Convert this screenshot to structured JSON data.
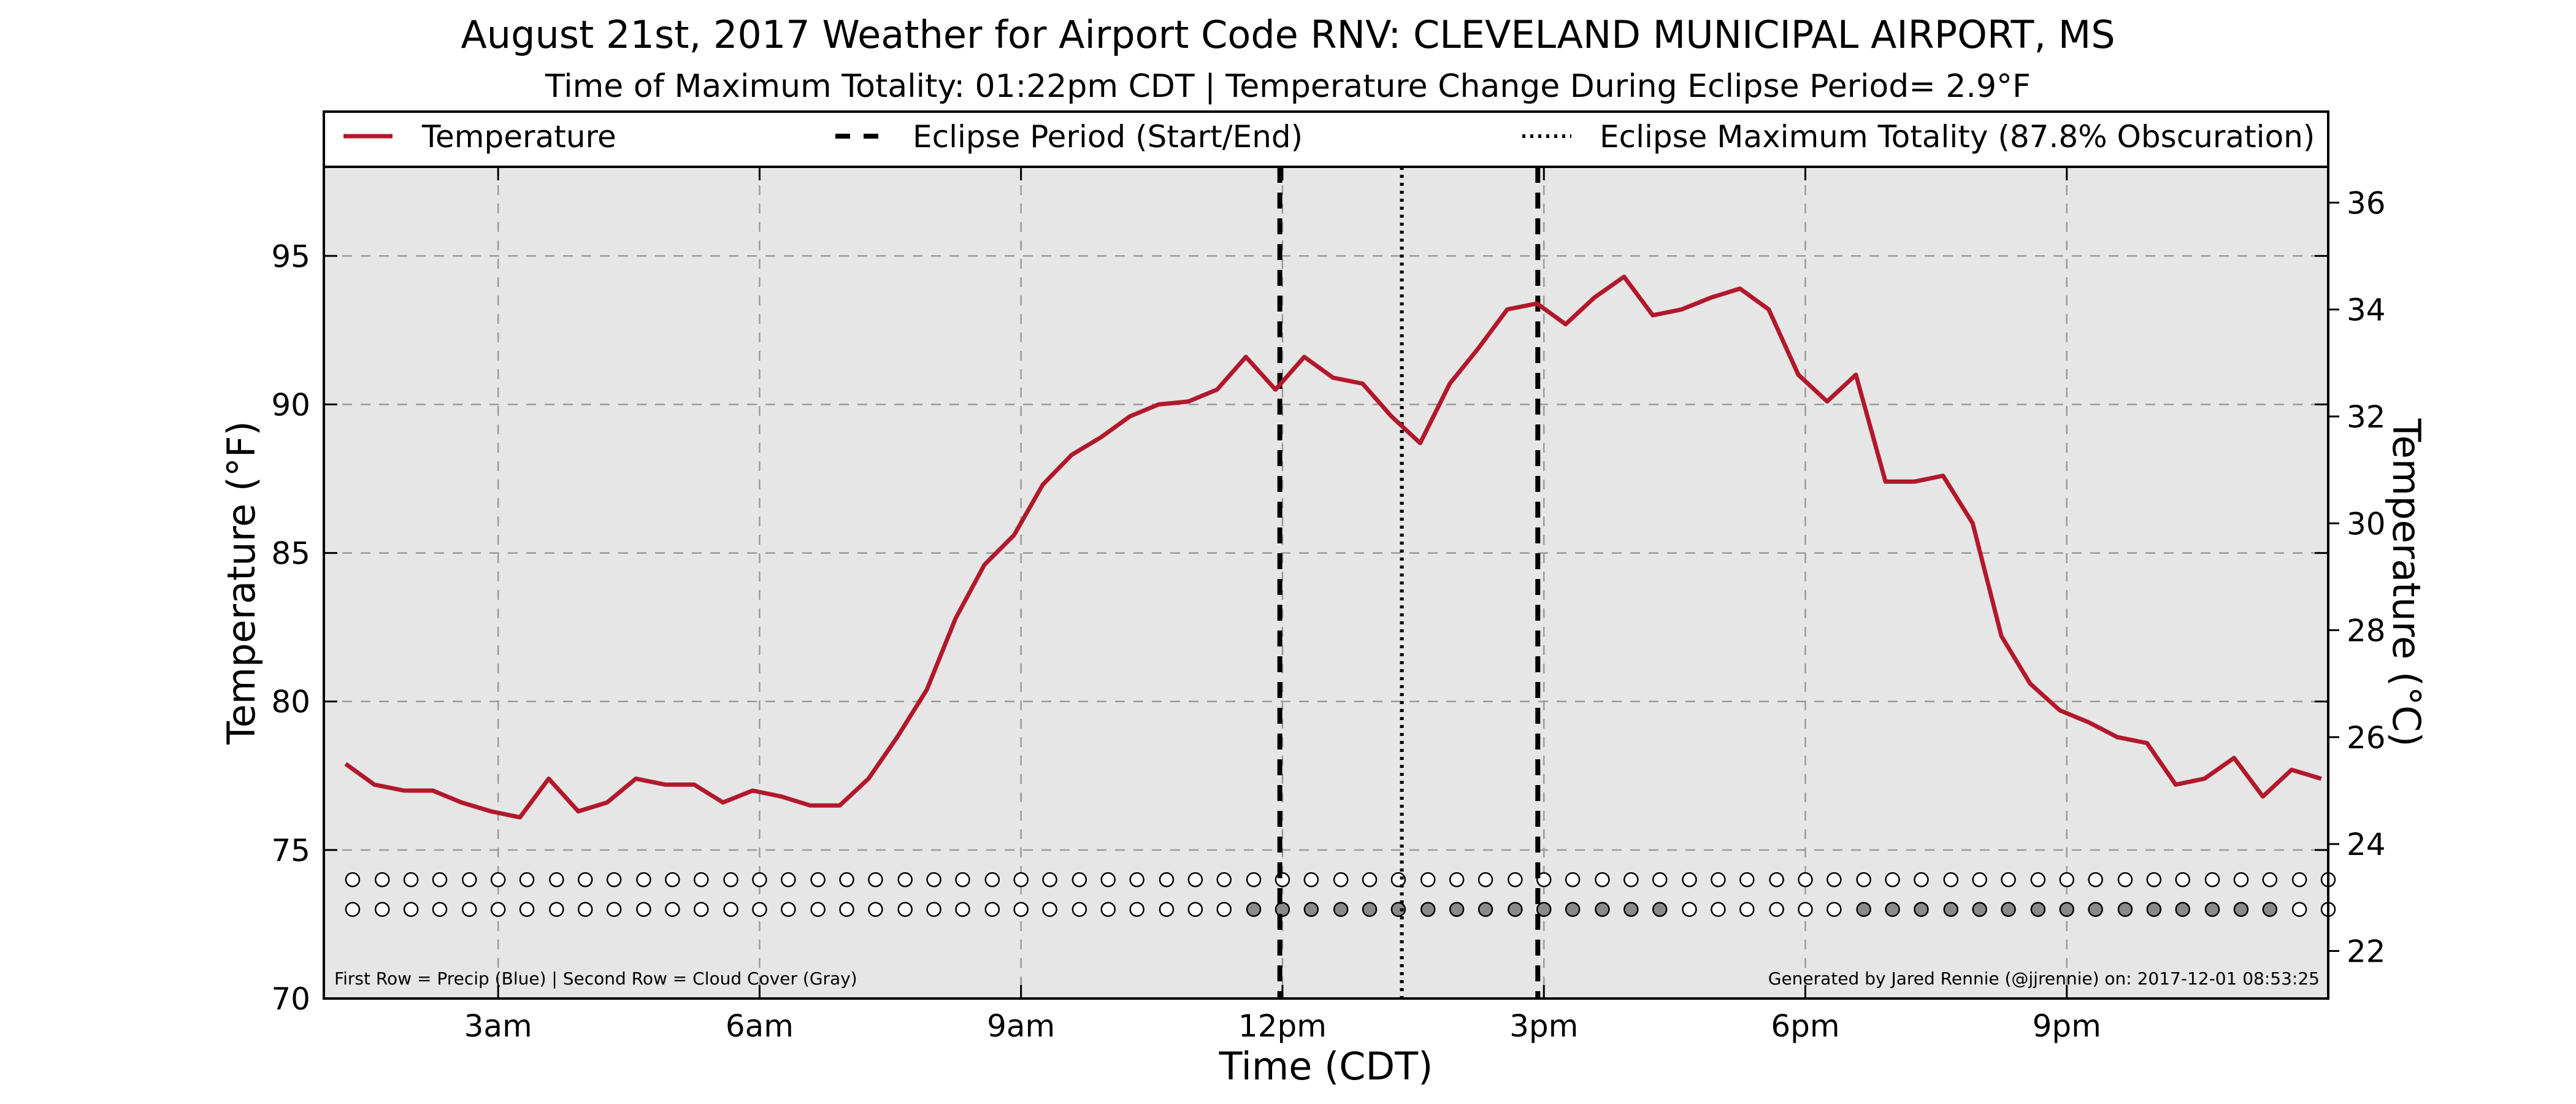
{
  "chart_data": {
    "type": "line",
    "title": "August 21st, 2017 Weather for Airport Code RNV: CLEVELAND MUNICIPAL AIRPORT, MS",
    "subtitle": "Time of Maximum Totality: 01:22pm CDT | Temperature Change During Eclipse Period= 2.9°F",
    "xlabel": "Time (CDT)",
    "ylabel_left": "Temperature (°F)",
    "ylabel_right": "Temperature (°C)",
    "x_ticks": [
      {
        "label": "3am",
        "hour": 3
      },
      {
        "label": "6am",
        "hour": 6
      },
      {
        "label": "9am",
        "hour": 9
      },
      {
        "label": "12pm",
        "hour": 12
      },
      {
        "label": "3pm",
        "hour": 15
      },
      {
        "label": "6pm",
        "hour": 18
      },
      {
        "label": "9pm",
        "hour": 21
      }
    ],
    "xlim": [
      1,
      24
    ],
    "ylim_left": [
      70,
      98
    ],
    "yticks_left": [
      "70",
      "75",
      "80",
      "85",
      "90",
      "95"
    ],
    "ylim_right": [
      21.11,
      36.67
    ],
    "yticks_right": [
      "22",
      "24",
      "26",
      "28",
      "30",
      "32",
      "34",
      "36"
    ],
    "grid": true,
    "legend_position": "top",
    "legend": [
      {
        "label": "Temperature",
        "style": "solid"
      },
      {
        "label": "Eclipse Period (Start/End)",
        "style": "dashed"
      },
      {
        "label": "Eclipse Maximum Totality (87.8% Obscuration)",
        "style": "dotted"
      }
    ],
    "series": [
      {
        "name": "Temperature",
        "color": "#b2182b",
        "x": [
          1.25,
          1.58,
          1.92,
          2.25,
          2.58,
          2.92,
          3.25,
          3.58,
          3.92,
          4.25,
          4.58,
          4.92,
          5.25,
          5.58,
          5.92,
          6.25,
          6.58,
          6.92,
          7.25,
          7.58,
          7.92,
          8.25,
          8.58,
          8.92,
          9.25,
          9.58,
          9.92,
          10.25,
          10.58,
          10.92,
          11.25,
          11.58,
          11.92,
          12.25,
          12.58,
          12.92,
          13.25,
          13.58,
          13.92,
          14.25,
          14.58,
          14.92,
          15.25,
          15.58,
          15.92,
          16.25,
          16.58,
          16.92,
          17.25,
          17.58,
          17.92,
          18.25,
          18.58,
          18.92,
          19.25,
          19.58,
          19.92,
          20.25,
          20.58,
          20.92,
          21.25,
          21.58,
          21.92,
          22.25,
          22.58,
          22.92,
          23.25,
          23.58,
          23.92
        ],
        "y": [
          77.9,
          77.2,
          77.0,
          77.0,
          76.6,
          76.3,
          76.1,
          77.4,
          76.3,
          76.6,
          77.4,
          77.2,
          77.2,
          76.6,
          77.0,
          76.8,
          76.5,
          76.5,
          77.4,
          78.8,
          80.4,
          82.8,
          84.6,
          85.6,
          87.3,
          88.3,
          88.9,
          89.6,
          90.0,
          90.1,
          90.5,
          91.6,
          90.5,
          91.6,
          90.9,
          90.7,
          89.6,
          88.7,
          90.7,
          91.9,
          93.2,
          93.4,
          92.7,
          93.6,
          94.3,
          93.0,
          93.2,
          93.6,
          93.9,
          93.2,
          91.0,
          90.1,
          91.0,
          87.4,
          87.4,
          87.6,
          86.0,
          82.2,
          80.6,
          79.7,
          79.3,
          78.8,
          78.6,
          77.2,
          77.4,
          78.1,
          76.8,
          77.7,
          77.4
        ]
      }
    ],
    "eclipse_start_hour": 11.97,
    "eclipse_max_hour": 13.37,
    "eclipse_end_hour": 14.93,
    "precip_markers": {
      "y": 74,
      "x": [
        1.33,
        1.67,
        2.0,
        2.33,
        2.67,
        3.0,
        3.33,
        3.67,
        4.0,
        4.33,
        4.67,
        5.0,
        5.33,
        5.67,
        6.0,
        6.33,
        6.67,
        7.0,
        7.33,
        7.67,
        8.0,
        8.33,
        8.67,
        9.0,
        9.33,
        9.67,
        10.0,
        10.33,
        10.67,
        11.0,
        11.33,
        11.67,
        12.0,
        12.33,
        12.67,
        13.0,
        13.33,
        13.67,
        14.0,
        14.33,
        14.67,
        15.0,
        15.33,
        15.67,
        16.0,
        16.33,
        16.67,
        17.0,
        17.33,
        17.67,
        18.0,
        18.33,
        18.67,
        19.0,
        19.33,
        19.67,
        20.0,
        20.33,
        20.67,
        21.0,
        21.33,
        21.67,
        22.0,
        22.33,
        22.67,
        23.0,
        23.33,
        23.67,
        24.0
      ],
      "fill": "empty"
    },
    "cloud_markers": {
      "y": 73,
      "x": [
        1.33,
        1.67,
        2.0,
        2.33,
        2.67,
        3.0,
        3.33,
        3.67,
        4.0,
        4.33,
        4.67,
        5.0,
        5.33,
        5.67,
        6.0,
        6.33,
        6.67,
        7.0,
        7.33,
        7.67,
        8.0,
        8.33,
        8.67,
        9.0,
        9.33,
        9.67,
        10.0,
        10.33,
        10.67,
        11.0,
        11.33,
        11.67,
        12.0,
        12.33,
        12.67,
        13.0,
        13.33,
        13.67,
        14.0,
        14.33,
        14.67,
        15.0,
        15.33,
        15.67,
        16.0,
        16.33,
        16.67,
        17.0,
        17.33,
        17.67,
        18.0,
        18.33,
        18.67,
        19.0,
        19.33,
        19.67,
        20.0,
        20.33,
        20.67,
        21.0,
        21.33,
        21.67,
        22.0,
        22.33,
        22.67,
        23.0,
        23.33,
        23.67,
        24.0
      ],
      "filled": [
        0,
        0,
        0,
        0,
        0,
        0,
        0,
        0,
        0,
        0,
        0,
        0,
        0,
        0,
        0,
        0,
        0,
        0,
        0,
        0,
        0,
        0,
        0,
        0,
        0,
        0,
        0,
        0,
        0,
        0,
        0,
        1,
        1,
        1,
        1,
        1,
        1,
        1,
        1,
        1,
        1,
        1,
        1,
        1,
        1,
        1,
        0,
        0,
        0,
        0,
        0,
        0,
        1,
        1,
        1,
        1,
        1,
        1,
        1,
        1,
        1,
        1,
        1,
        1,
        1,
        1,
        1,
        0,
        0
      ]
    },
    "footnote_left": "First Row = Precip (Blue) | Second Row = Cloud Cover (Gray)",
    "footnote_right": "Generated by Jared Rennie (@jjrennie) on: 2017-12-01 08:53:25"
  }
}
